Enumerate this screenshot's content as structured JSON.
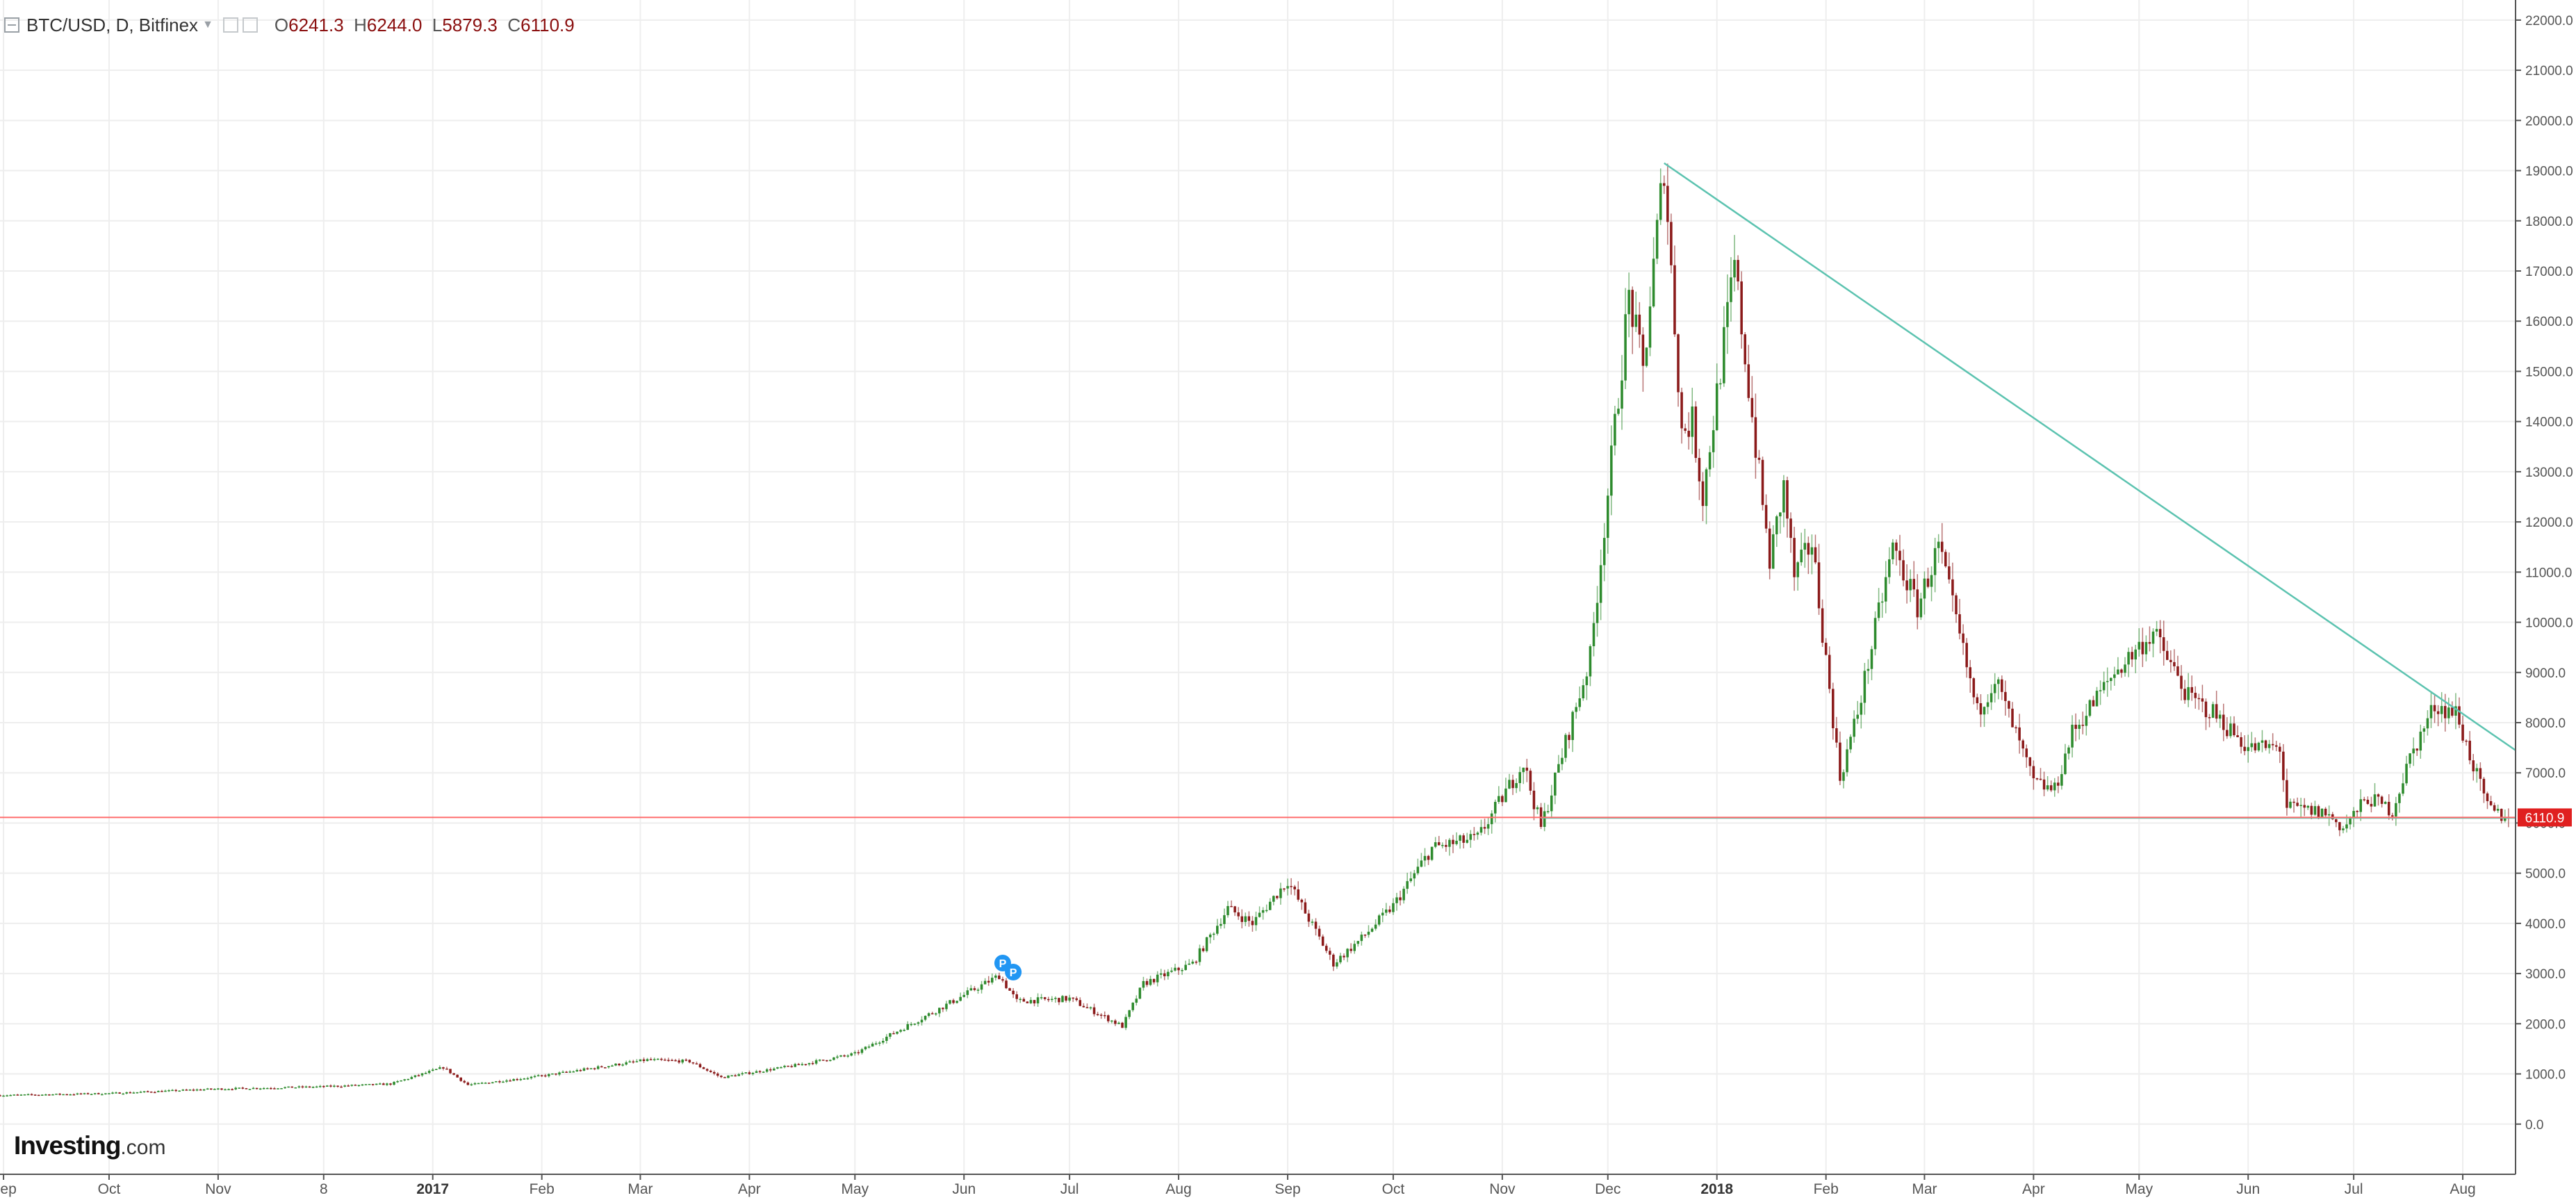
{
  "legend": {
    "symbol": "BTC/USD, D, Bitfinex",
    "open_key": "O",
    "open": "6241.3",
    "high_key": "H",
    "high": "6244.0",
    "low_key": "L",
    "low": "5879.3",
    "close_key": "C",
    "close": "6110.9"
  },
  "logo": {
    "brand": "Investing",
    "suffix": ".com"
  },
  "colors": {
    "up": "#2e8b2e",
    "down": "#8b1a1a",
    "trendline": "#5cc3b0",
    "last_price_line": "#ff6b6b",
    "last_price_badge": "#e02020",
    "grid": "#eeeeee",
    "axis": "#555555",
    "event_marker": "#2196f3"
  },
  "chart_data": {
    "type": "candlestick",
    "title": "BTC/USD, D, Bitfinex",
    "y_axis": {
      "range": [
        -1000,
        22400
      ],
      "ticks": [
        0,
        1000,
        2000,
        3000,
        4000,
        5000,
        6000,
        7000,
        8000,
        9000,
        10000,
        11000,
        12000,
        13000,
        14000,
        15000,
        16000,
        17000,
        18000,
        19000,
        20000,
        21000,
        22000
      ],
      "tick_labels": [
        "0.0",
        "1000.0",
        "2000.0",
        "3000.0",
        "4000.0",
        "5000.0",
        "6000.0",
        "7000.0",
        "8000.0",
        "9000.0",
        "10000.0",
        "11000.0",
        "12000.0",
        "13000.0",
        "14000.0",
        "15000.0",
        "16000.0",
        "17000.0",
        "18000.0",
        "19000.0",
        "20000.0",
        "21000.0",
        "22000.0"
      ],
      "position": "right"
    },
    "x_axis": {
      "range": [
        "2016-08-31",
        "2018-08-16"
      ],
      "ticks": [
        {
          "date": "2016-09-01",
          "label": "Sep",
          "year": false
        },
        {
          "date": "2016-10-01",
          "label": "Oct",
          "year": false
        },
        {
          "date": "2016-11-01",
          "label": "Nov",
          "year": false
        },
        {
          "date": "2016-12-01",
          "label": "8",
          "year": false
        },
        {
          "date": "2017-01-01",
          "label": "2017",
          "year": true
        },
        {
          "date": "2017-02-01",
          "label": "Feb",
          "year": false
        },
        {
          "date": "2017-03-01",
          "label": "Mar",
          "year": false
        },
        {
          "date": "2017-04-01",
          "label": "Apr",
          "year": false
        },
        {
          "date": "2017-05-01",
          "label": "May",
          "year": false
        },
        {
          "date": "2017-06-01",
          "label": "Jun",
          "year": false
        },
        {
          "date": "2017-07-01",
          "label": "Jul",
          "year": false
        },
        {
          "date": "2017-08-01",
          "label": "Aug",
          "year": false
        },
        {
          "date": "2017-09-01",
          "label": "Sep",
          "year": false
        },
        {
          "date": "2017-10-01",
          "label": "Oct",
          "year": false
        },
        {
          "date": "2017-11-01",
          "label": "Nov",
          "year": false
        },
        {
          "date": "2017-12-01",
          "label": "Dec",
          "year": false
        },
        {
          "date": "2018-01-01",
          "label": "2018",
          "year": true
        },
        {
          "date": "2018-02-01",
          "label": "Feb",
          "year": false
        },
        {
          "date": "2018-03-01",
          "label": "Mar",
          "year": false
        },
        {
          "date": "2018-04-01",
          "label": "Apr",
          "year": false
        },
        {
          "date": "2018-05-01",
          "label": "May",
          "year": false
        },
        {
          "date": "2018-06-01",
          "label": "Jun",
          "year": false
        },
        {
          "date": "2018-07-01",
          "label": "Jul",
          "year": false
        },
        {
          "date": "2018-08-01",
          "label": "Aug",
          "year": false
        }
      ]
    },
    "grid": true,
    "close_path": [
      [
        "2016-08-31",
        575
      ],
      [
        "2016-09-30",
        610
      ],
      [
        "2016-10-31",
        700
      ],
      [
        "2016-11-30",
        745
      ],
      [
        "2016-12-20",
        800
      ],
      [
        "2017-01-04",
        1130
      ],
      [
        "2017-01-11",
        780
      ],
      [
        "2017-02-01",
        960
      ],
      [
        "2017-03-03",
        1280
      ],
      [
        "2017-03-15",
        1250
      ],
      [
        "2017-03-24",
        930
      ],
      [
        "2017-04-15",
        1180
      ],
      [
        "2017-05-01",
        1400
      ],
      [
        "2017-05-25",
        2300
      ],
      [
        "2017-06-11",
        2960
      ],
      [
        "2017-06-16",
        2450
      ],
      [
        "2017-07-01",
        2500
      ],
      [
        "2017-07-16",
        1950
      ],
      [
        "2017-07-22",
        2800
      ],
      [
        "2017-08-05",
        3200
      ],
      [
        "2017-08-15",
        4300
      ],
      [
        "2017-08-22",
        4000
      ],
      [
        "2017-09-01",
        4850
      ],
      [
        "2017-09-14",
        3200
      ],
      [
        "2017-09-22",
        3700
      ],
      [
        "2017-10-01",
        4350
      ],
      [
        "2017-10-12",
        5500
      ],
      [
        "2017-10-25",
        5700
      ],
      [
        "2017-11-07",
        7200
      ],
      [
        "2017-11-12",
        5900
      ],
      [
        "2017-11-26",
        9300
      ],
      [
        "2017-12-07",
        16500
      ],
      [
        "2017-12-11",
        15000
      ],
      [
        "2017-12-17",
        19150
      ],
      [
        "2017-12-22",
        13800
      ],
      [
        "2017-12-25",
        14000
      ],
      [
        "2017-12-28",
        12500
      ],
      [
        "2018-01-06",
        17100
      ],
      [
        "2018-01-12",
        13500
      ],
      [
        "2018-01-16",
        11200
      ],
      [
        "2018-01-20",
        12700
      ],
      [
        "2018-01-23",
        10900
      ],
      [
        "2018-01-28",
        11600
      ],
      [
        "2018-02-05",
        6900
      ],
      [
        "2018-02-10",
        8200
      ],
      [
        "2018-02-20",
        11500
      ],
      [
        "2018-02-27",
        10300
      ],
      [
        "2018-03-05",
        11500
      ],
      [
        "2018-03-16",
        8200
      ],
      [
        "2018-03-21",
        8900
      ],
      [
        "2018-04-01",
        6800
      ],
      [
        "2018-04-07",
        6650
      ],
      [
        "2018-04-12",
        7800
      ],
      [
        "2018-04-24",
        9000
      ],
      [
        "2018-05-05",
        9800
      ],
      [
        "2018-05-15",
        8500
      ],
      [
        "2018-05-22",
        8200
      ],
      [
        "2018-06-01",
        7500
      ],
      [
        "2018-06-10",
        7500
      ],
      [
        "2018-06-12",
        6300
      ],
      [
        "2018-06-23",
        6200
      ],
      [
        "2018-06-28",
        5900
      ],
      [
        "2018-07-05",
        6500
      ],
      [
        "2018-07-12",
        6250
      ],
      [
        "2018-07-17",
        7300
      ],
      [
        "2018-07-24",
        8350
      ],
      [
        "2018-07-30",
        8200
      ],
      [
        "2018-08-08",
        6300
      ],
      [
        "2018-08-13",
        6100
      ],
      [
        "2018-08-14",
        6110.9
      ]
    ],
    "trendline": {
      "from": [
        "2017-12-17",
        19150
      ],
      "to": [
        "2018-08-16",
        7450
      ]
    },
    "support_line": {
      "from": [
        "2017-11-12",
        6100
      ],
      "to": [
        "2018-08-16",
        6100
      ]
    },
    "last_price": 6110.9,
    "last_price_label": "6110.9",
    "event_markers": [
      {
        "date": "2017-06-12",
        "value": 2960,
        "label": "P"
      },
      {
        "date": "2017-06-15",
        "value": 2780,
        "label": "P"
      }
    ]
  }
}
